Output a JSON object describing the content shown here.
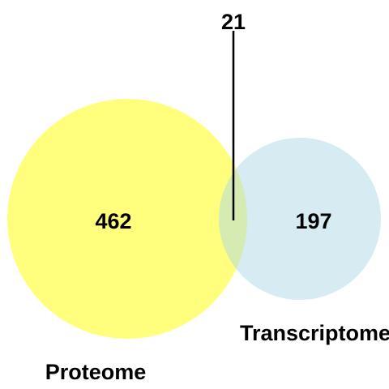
{
  "diagram": {
    "type": "venn",
    "sets": [
      {
        "name": "Proteome",
        "only_count": "462",
        "color": "#FFFF66"
      },
      {
        "name": "Transcriptome",
        "only_count": "197",
        "color": "#ADD8E6"
      }
    ],
    "intersection_count": "21",
    "callout_line_color": "#000000"
  }
}
